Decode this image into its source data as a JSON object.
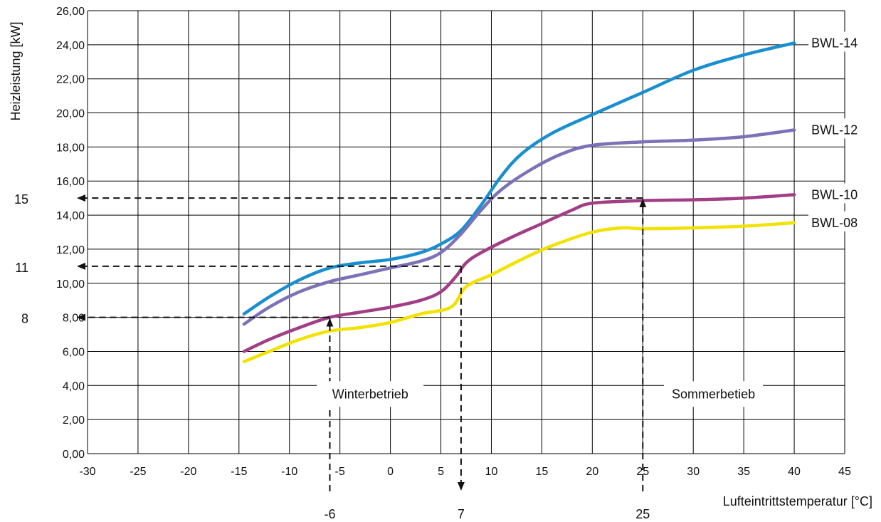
{
  "chart_data": {
    "type": "line",
    "xlabel": "Lufteintrittstemperatur [°C]",
    "ylabel": "Heizleistung [kW]",
    "xlim": [
      -30,
      45
    ],
    "ylim": [
      0,
      26
    ],
    "grid": true,
    "x_ticks": [
      "-30",
      "-25",
      "-20",
      "-15",
      "-10",
      "-5",
      "0",
      "5",
      "10",
      "15",
      "20",
      "25",
      "30",
      "35",
      "40",
      "45"
    ],
    "y_ticks": [
      "0,00",
      "2,00",
      "4,00",
      "6,00",
      "8,00",
      "10,00",
      "12,00",
      "14,00",
      "16,00",
      "18,00",
      "20,00",
      "22,00",
      "24,00",
      "26,00"
    ],
    "series": [
      {
        "name": "BWL-14",
        "color": "#1a8fd0",
        "points": [
          [
            -14.5,
            8.2
          ],
          [
            -12,
            9.2
          ],
          [
            -9,
            10.2
          ],
          [
            -6,
            10.9
          ],
          [
            -3,
            11.2
          ],
          [
            0,
            11.4
          ],
          [
            3,
            11.8
          ],
          [
            5,
            12.3
          ],
          [
            7,
            13.1
          ],
          [
            9,
            14.6
          ],
          [
            11,
            16.3
          ],
          [
            13,
            17.6
          ],
          [
            16,
            18.8
          ],
          [
            20,
            19.9
          ],
          [
            25,
            21.2
          ],
          [
            30,
            22.5
          ],
          [
            35,
            23.4
          ],
          [
            40,
            24.1
          ]
        ]
      },
      {
        "name": "BWL-12",
        "color": "#7b72b7",
        "points": [
          [
            -14.5,
            7.6
          ],
          [
            -12,
            8.6
          ],
          [
            -9,
            9.5
          ],
          [
            -6,
            10.1
          ],
          [
            -3,
            10.5
          ],
          [
            0,
            10.9
          ],
          [
            3,
            11.3
          ],
          [
            5,
            11.8
          ],
          [
            7,
            12.9
          ],
          [
            9,
            14.3
          ],
          [
            11,
            15.5
          ],
          [
            14,
            16.7
          ],
          [
            17,
            17.6
          ],
          [
            20,
            18.1
          ],
          [
            25,
            18.3
          ],
          [
            30,
            18.4
          ],
          [
            35,
            18.6
          ],
          [
            40,
            19.0
          ]
        ]
      },
      {
        "name": "BWL-10",
        "color": "#a23e85",
        "points": [
          [
            -14.5,
            6.0
          ],
          [
            -12,
            6.7
          ],
          [
            -9,
            7.4
          ],
          [
            -6,
            8.0
          ],
          [
            -3,
            8.3
          ],
          [
            0,
            8.6
          ],
          [
            3,
            9.0
          ],
          [
            5,
            9.5
          ],
          [
            6.5,
            10.4
          ],
          [
            7.5,
            11.2
          ],
          [
            9,
            11.8
          ],
          [
            12,
            12.7
          ],
          [
            15,
            13.5
          ],
          [
            18,
            14.3
          ],
          [
            20,
            14.7
          ],
          [
            25,
            14.85
          ],
          [
            30,
            14.9
          ],
          [
            35,
            15.0
          ],
          [
            40,
            15.2
          ]
        ]
      },
      {
        "name": "BWL-08",
        "color": "#f2e200",
        "points": [
          [
            -14.5,
            5.4
          ],
          [
            -12,
            6.0
          ],
          [
            -9,
            6.7
          ],
          [
            -6,
            7.2
          ],
          [
            -3,
            7.4
          ],
          [
            0,
            7.7
          ],
          [
            3,
            8.2
          ],
          [
            6,
            8.6
          ],
          [
            7.5,
            9.8
          ],
          [
            10,
            10.5
          ],
          [
            13,
            11.4
          ],
          [
            16,
            12.2
          ],
          [
            20,
            13.0
          ],
          [
            23,
            13.25
          ],
          [
            25,
            13.2
          ],
          [
            30,
            13.25
          ],
          [
            35,
            13.35
          ],
          [
            40,
            13.55
          ]
        ]
      }
    ],
    "annotations": {
      "guides": [
        {
          "x_label": "-6",
          "y_label": "8",
          "x": -6,
          "y": 8
        },
        {
          "x_label": "7",
          "y_label": "11",
          "x": 7,
          "y": 11
        },
        {
          "x_label": "25",
          "y_label": "15",
          "x": 25,
          "y": 15
        }
      ],
      "regions": [
        {
          "text": "Winterbetrieb",
          "x": -2
        },
        {
          "text": "Sommerbetieb",
          "x": 32
        }
      ]
    }
  }
}
